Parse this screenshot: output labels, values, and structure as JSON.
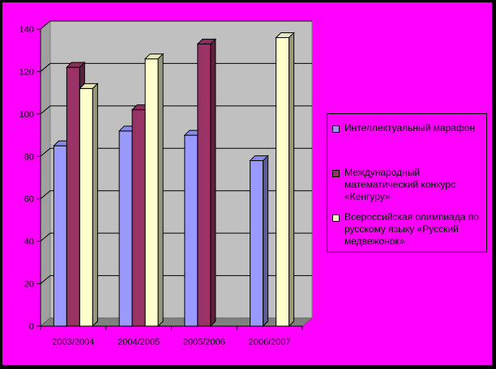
{
  "chart_data": {
    "type": "bar",
    "categories": [
      "2003/2004",
      "2004/2005",
      "2005/2006",
      "2006/2007"
    ],
    "series": [
      {
        "name": "Интеллектуальный марафон",
        "values": [
          85,
          92,
          90,
          78
        ],
        "color": "#9999ff"
      },
      {
        "name": "Международный математический конкурс «Кенгуру»",
        "values": [
          122,
          102,
          133,
          null
        ],
        "color": "#993366"
      },
      {
        "name": "Всероссийская олимпиада по русскому языку «Русский медвежонок»",
        "values": [
          112,
          126,
          null,
          136
        ],
        "color": "#ffffcc"
      }
    ],
    "yticks": [
      "0",
      "20",
      "40",
      "60",
      "80",
      "100",
      "120",
      "140"
    ],
    "ylim": [
      0,
      140
    ],
    "grid": true,
    "legend_position": "right",
    "plot_wall_color": "#c0c0c0",
    "background_color": "#ff00ff"
  }
}
